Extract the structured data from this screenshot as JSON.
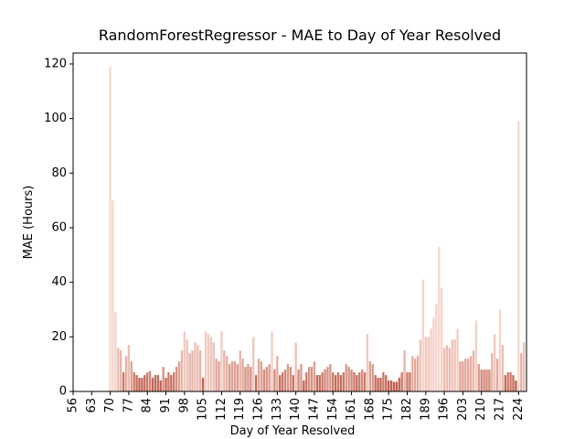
{
  "chart_data": {
    "type": "bar",
    "title": "RandomForestRegressor - MAE to Day of Year Resolved",
    "xlabel": "Day of Year Resolved",
    "ylabel": "MAE (Hours)",
    "x": [
      70,
      71,
      72,
      73,
      74,
      75,
      76,
      77,
      78,
      79,
      80,
      81,
      82,
      83,
      84,
      85,
      86,
      87,
      88,
      89,
      90,
      91,
      92,
      93,
      94,
      95,
      96,
      97,
      98,
      99,
      100,
      101,
      102,
      103,
      104,
      105,
      106,
      107,
      108,
      109,
      110,
      111,
      112,
      113,
      114,
      115,
      116,
      117,
      118,
      119,
      120,
      121,
      122,
      123,
      124,
      125,
      126,
      127,
      128,
      129,
      130,
      131,
      132,
      133,
      134,
      135,
      136,
      137,
      138,
      139,
      140,
      141,
      142,
      143,
      144,
      145,
      146,
      147,
      148,
      149,
      150,
      151,
      152,
      153,
      154,
      155,
      156,
      157,
      158,
      159,
      160,
      161,
      162,
      163,
      164,
      165,
      166,
      167,
      168,
      169,
      170,
      171,
      172,
      173,
      174,
      175,
      176,
      177,
      178,
      179,
      180,
      181,
      182,
      183,
      184,
      185,
      186,
      187,
      188,
      189,
      190,
      191,
      192,
      193,
      194,
      195,
      196,
      197,
      198,
      199,
      200,
      201,
      202,
      203,
      204,
      205,
      206,
      207,
      208,
      209,
      210,
      211,
      212,
      213,
      214,
      215,
      216,
      217,
      218,
      219,
      220,
      221,
      222,
      223,
      224,
      225,
      226
    ],
    "values": [
      119,
      70,
      29,
      16,
      15,
      7,
      13,
      17,
      11,
      7,
      6,
      5,
      5,
      6,
      7,
      7.5,
      5,
      6,
      6,
      4,
      9,
      5,
      7,
      6,
      7,
      9,
      11,
      15,
      22,
      19,
      14,
      15,
      18,
      17,
      15,
      5,
      22,
      21,
      20,
      18,
      12,
      11,
      22,
      15,
      13,
      10,
      11,
      11,
      10,
      15,
      12,
      9,
      10,
      9,
      20,
      6,
      12,
      11,
      8,
      9,
      10,
      22,
      8,
      13,
      6,
      7,
      8,
      10,
      9,
      6,
      18,
      8,
      10,
      4,
      7,
      9,
      9,
      11,
      6,
      6,
      7,
      8,
      9,
      10,
      7,
      6,
      7,
      6,
      7,
      10,
      9,
      8,
      7,
      6,
      7,
      8,
      7,
      21,
      11,
      10,
      6,
      5,
      5,
      7,
      6,
      4,
      4,
      3.5,
      3.5,
      5,
      7,
      15,
      7,
      7,
      13,
      12,
      13,
      19,
      41,
      20,
      20,
      23,
      27,
      32,
      53,
      38,
      16,
      17,
      16,
      19,
      19,
      23,
      11,
      11,
      12,
      12,
      13,
      15,
      26,
      10,
      8,
      8,
      8,
      8,
      14,
      21,
      12,
      30,
      17,
      6,
      7,
      7,
      6,
      4,
      99,
      14,
      18
    ],
    "palette": [
      "#c0604f",
      "#f7d8cf"
    ],
    "xlim": [
      56,
      227
    ],
    "ylim": [
      0,
      124
    ],
    "xticks": [
      56,
      63,
      70,
      77,
      84,
      91,
      98,
      105,
      112,
      119,
      126,
      133,
      140,
      147,
      154,
      161,
      168,
      175,
      182,
      189,
      196,
      203,
      210,
      217,
      224
    ],
    "yticks": [
      0,
      20,
      40,
      60,
      80,
      100,
      120
    ]
  }
}
